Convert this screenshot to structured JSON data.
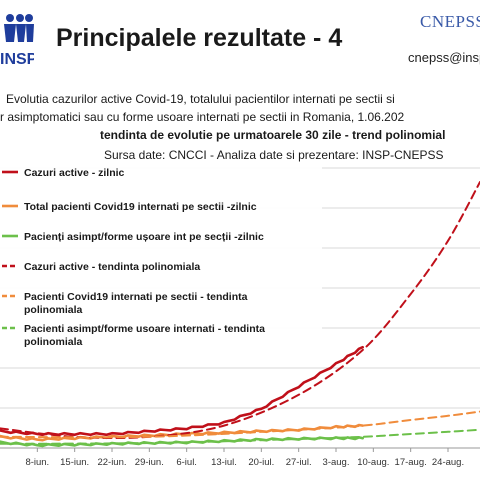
{
  "header": {
    "title": "Principalele rezultate - 4",
    "logo_left_text": "INSP",
    "logo_right_text": "CNEPSS",
    "contact": "cnepss@insp"
  },
  "description": {
    "line1": "Evolutia cazurilor active Covid-19, totalului pacientilor internati pe sectii si",
    "line2": "r asimptomatici sau cu forme usoare internati pe sectii in Romania, 1.06.202",
    "line3": "tendinta de evolutie pe urmatoarele 30 zile - trend polinomial",
    "line4": "Sursa date: CNCCI  -  Analiza date si prezentare: INSP-CNEPSS"
  },
  "colors": {
    "active": "#c0101a",
    "hospitalized": "#f08c3c",
    "asymptomatic": "#6cc04a"
  },
  "chart_data": {
    "type": "line",
    "x_ticks": [
      "8-iun.",
      "15-iun.",
      "22-iun.",
      "29-iun.",
      "6-iul.",
      "13-iul.",
      "20-iul.",
      "27-iul.",
      "3-aug.",
      "10-aug.",
      "17-aug.",
      "24-aug."
    ],
    "x_range": [
      "2020-06-01",
      "2020-08-30"
    ],
    "grid": "horizontal",
    "legend": [
      {
        "label": "Cazuri active - zilnic",
        "style": "solid",
        "color": "#c0101a"
      },
      {
        "label": "Total pacienti Covid19 internati pe sectii -zilnic",
        "style": "solid",
        "color": "#f08c3c"
      },
      {
        "label": "Pacienți asimpt/forme ușoare int pe secții -zilnic",
        "style": "solid",
        "color": "#6cc04a"
      },
      {
        "label": "Cazuri active - tendinta polinomiala",
        "style": "dashed",
        "color": "#c0101a"
      },
      {
        "label": "Pacienti Covid19 internati pe sectii - tendinta polinomiala",
        "style": "dashed",
        "color": "#f08c3c"
      },
      {
        "label": "Pacienti asimpt/forme usoare internati - tendinta polinomiala",
        "style": "dashed",
        "color": "#6cc04a"
      }
    ],
    "series": [
      {
        "kind": "daily",
        "series_index": 0,
        "color": "#c0101a",
        "points": [
          [
            "2020-06-01",
            0.06
          ],
          [
            "2020-06-08",
            0.05
          ],
          [
            "2020-06-15",
            0.05
          ],
          [
            "2020-06-22",
            0.05
          ],
          [
            "2020-06-29",
            0.06
          ],
          [
            "2020-07-06",
            0.07
          ],
          [
            "2020-07-13",
            0.09
          ],
          [
            "2020-07-20",
            0.14
          ],
          [
            "2020-07-27",
            0.22
          ],
          [
            "2020-08-03",
            0.3
          ],
          [
            "2020-08-08",
            0.36
          ]
        ]
      },
      {
        "kind": "daily",
        "series_index": 1,
        "color": "#f08c3c",
        "points": [
          [
            "2020-06-01",
            0.04
          ],
          [
            "2020-06-08",
            0.03
          ],
          [
            "2020-06-15",
            0.035
          ],
          [
            "2020-06-22",
            0.04
          ],
          [
            "2020-06-29",
            0.045
          ],
          [
            "2020-07-06",
            0.05
          ],
          [
            "2020-07-13",
            0.055
          ],
          [
            "2020-07-20",
            0.06
          ],
          [
            "2020-07-27",
            0.065
          ],
          [
            "2020-08-03",
            0.075
          ],
          [
            "2020-08-08",
            0.08
          ]
        ]
      },
      {
        "kind": "daily",
        "series_index": 2,
        "color": "#6cc04a",
        "points": [
          [
            "2020-06-01",
            0.02
          ],
          [
            "2020-06-08",
            0.01
          ],
          [
            "2020-06-15",
            0.012
          ],
          [
            "2020-06-22",
            0.015
          ],
          [
            "2020-06-29",
            0.018
          ],
          [
            "2020-07-06",
            0.02
          ],
          [
            "2020-07-13",
            0.025
          ],
          [
            "2020-07-20",
            0.03
          ],
          [
            "2020-07-27",
            0.033
          ],
          [
            "2020-08-03",
            0.035
          ],
          [
            "2020-08-08",
            0.035
          ]
        ]
      },
      {
        "kind": "trend",
        "series_index": 3,
        "color": "#c0101a",
        "points": [
          [
            "2020-06-01",
            0.07
          ],
          [
            "2020-06-15",
            0.04
          ],
          [
            "2020-06-29",
            0.04
          ],
          [
            "2020-07-13",
            0.08
          ],
          [
            "2020-07-27",
            0.19
          ],
          [
            "2020-08-08",
            0.35
          ],
          [
            "2020-08-17",
            0.55
          ],
          [
            "2020-08-24",
            0.74
          ],
          [
            "2020-08-30",
            0.95
          ]
        ]
      },
      {
        "kind": "trend",
        "series_index": 4,
        "color": "#f08c3c",
        "points": [
          [
            "2020-06-01",
            0.04
          ],
          [
            "2020-06-29",
            0.04
          ],
          [
            "2020-07-27",
            0.065
          ],
          [
            "2020-08-08",
            0.08
          ],
          [
            "2020-08-17",
            0.1
          ],
          [
            "2020-08-24",
            0.115
          ],
          [
            "2020-08-30",
            0.13
          ]
        ]
      },
      {
        "kind": "trend",
        "series_index": 5,
        "color": "#6cc04a",
        "points": [
          [
            "2020-06-01",
            0.015
          ],
          [
            "2020-06-29",
            0.018
          ],
          [
            "2020-07-27",
            0.032
          ],
          [
            "2020-08-08",
            0.04
          ],
          [
            "2020-08-17",
            0.05
          ],
          [
            "2020-08-24",
            0.058
          ],
          [
            "2020-08-30",
            0.065
          ]
        ]
      }
    ]
  }
}
